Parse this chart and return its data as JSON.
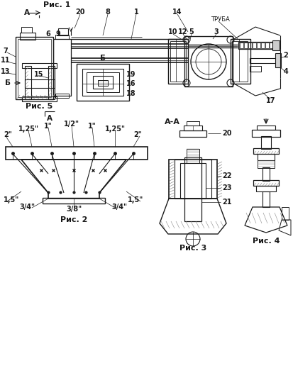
{
  "bg_color": "#ffffff",
  "lc": "#1a1a1a",
  "fig_labels": [
    "Рис. 1",
    "Рис. 2",
    "Рис. 3",
    "Рис. 4",
    "Рис. 5"
  ],
  "fig1_nums": {
    "A_arrow": [
      45,
      530
    ],
    "labels_top": [
      [
        "20",
        112,
        532
      ],
      [
        "8",
        155,
        532
      ],
      [
        "1",
        195,
        532
      ],
      [
        "14",
        255,
        532
      ]
    ],
    "labels_side": [
      [
        "7",
        10,
        478
      ],
      [
        "11",
        10,
        464
      ],
      [
        "13",
        10,
        445
      ],
      [
        "6",
        72,
        500
      ],
      [
        "9",
        85,
        500
      ]
    ],
    "labels_bot": [
      [
        "10",
        245,
        490
      ],
      [
        "12",
        258,
        490
      ],
      [
        "5",
        270,
        490
      ],
      [
        "3",
        318,
        490
      ],
      [
        "17",
        385,
        490
      ]
    ],
    "labels_right": [
      [
        "2",
        400,
        470
      ],
      [
        "4",
        400,
        455
      ]
    ]
  },
  "fig2_top": [
    "2\"",
    "1,25\"",
    "1\"",
    "1/2\"",
    "1\"",
    "1,25\"",
    "2\""
  ],
  "fig2_bot": [
    "1,5\"",
    "3/4\"",
    "3/8\"",
    "3/4\"",
    "1,5\""
  ],
  "fig3_nums": [
    [
      "20",
      310,
      315
    ],
    [
      "22",
      310,
      295
    ],
    [
      "23",
      310,
      278
    ],
    [
      "21",
      310,
      262
    ]
  ],
  "fig5_nums": [
    [
      "15",
      60,
      435
    ],
    [
      "19",
      175,
      442
    ],
    [
      "16",
      175,
      428
    ],
    [
      "18",
      175,
      412
    ]
  ]
}
